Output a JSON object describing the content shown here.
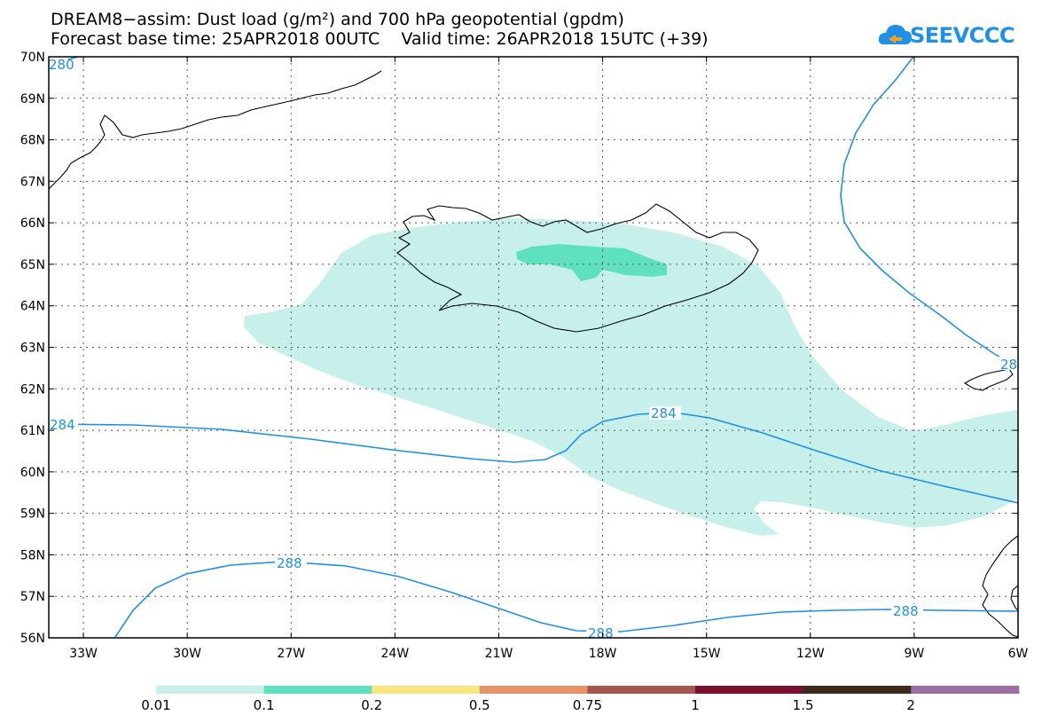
{
  "title_line1": "DREAM8−assim: Dust load (g/m²) and 700 hPa geopotential (gpdm)",
  "title_line2": "Forecast base time: 25APR2018 00UTC    Valid time: 26APR2018 15UTC (+39)",
  "logo_text": "SEEVCCC",
  "lat_labels": [
    "70N",
    "69N",
    "68N",
    "67N",
    "66N",
    "65N",
    "64N",
    "63N",
    "62N",
    "61N",
    "60N",
    "59N",
    "58N",
    "57N",
    "56N"
  ],
  "lon_labels": [
    "33W",
    "30W",
    "27W",
    "24W",
    "21W",
    "18W",
    "15W",
    "12W",
    "9W",
    "6W"
  ],
  "contour_labels": {
    "c280": "280",
    "c284_west": "284",
    "c284_mid": "284",
    "c288_west": "288",
    "c288_mid": "288",
    "c288_east": "288",
    "c28_east": "28"
  },
  "colorbar": {
    "labels": [
      "0.01",
      "0.1",
      "0.2",
      "0.5",
      "0.75",
      "1",
      "1.5",
      "2"
    ],
    "colors": [
      "#c7f0ea",
      "#5fe0be",
      "#f7e57e",
      "#e8926a",
      "#a4564f",
      "#7a0f2e",
      "#3e2a1c",
      "#9a6ea0"
    ]
  },
  "colors": {
    "contour": "#1e90e8",
    "dust_low": "#c7f0ea",
    "dust_mid": "#5fe0be"
  }
}
